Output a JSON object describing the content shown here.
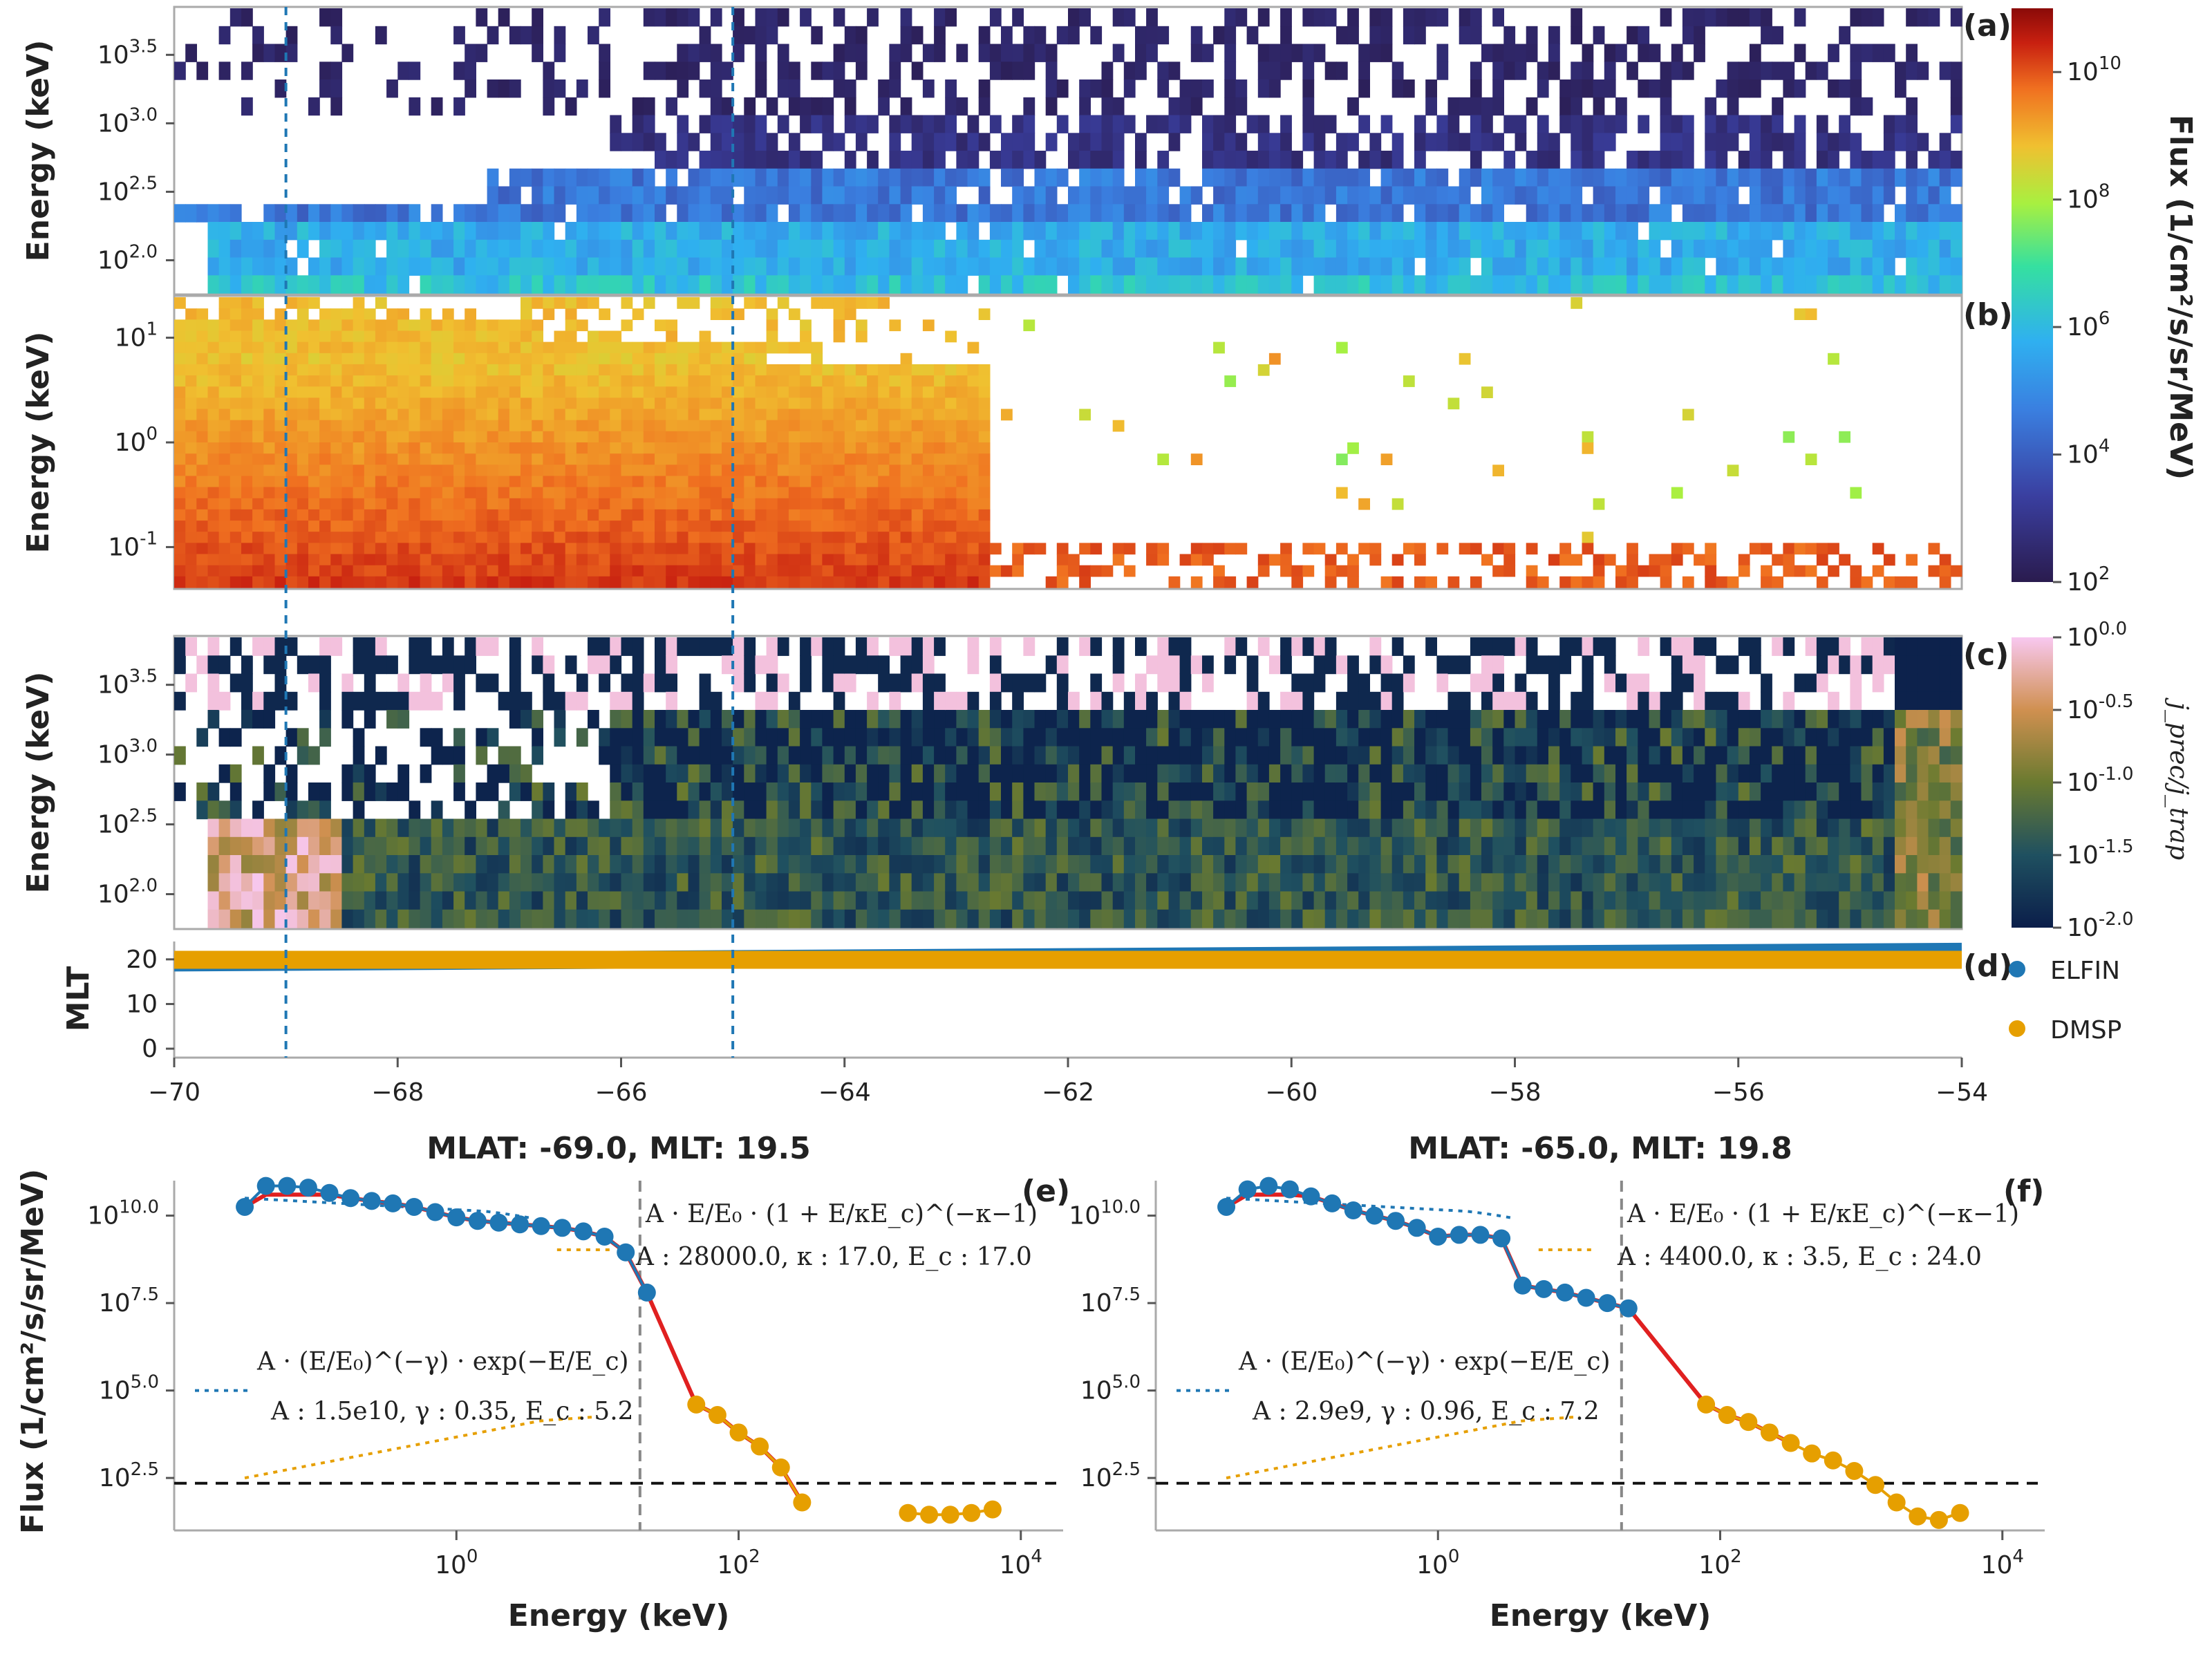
{
  "spectrograms": {
    "energy_ylabel": "Energy (keV)",
    "x_range": [
      -70,
      -54
    ],
    "x_ticks": [
      "-70",
      "-68",
      "-66",
      "-64",
      "-62",
      "-60",
      "-58",
      "-56",
      "-54"
    ],
    "dashed_mlat_lines": [
      -69.0,
      -65.0
    ],
    "panel_a": {
      "label": "(a)",
      "yticks": [
        "10^3.5",
        "10^3.0",
        "10^2.5",
        "10^2.0"
      ]
    },
    "panel_b": {
      "label": "(b)",
      "yticks": [
        "10^1",
        "10^0",
        "10^-1"
      ]
    },
    "panel_c": {
      "label": "(c)",
      "yticks": [
        "10^3.5",
        "10^3.0",
        "10^2.5",
        "10^2.0"
      ]
    },
    "panel_d": {
      "label": "(d)",
      "ylabel": "MLT",
      "yticks": [
        "20",
        "10",
        "0"
      ],
      "legend": [
        {
          "name": "ELFIN",
          "color": "#1f77b4"
        },
        {
          "name": "DMSP",
          "color": "#e69f00"
        }
      ]
    },
    "flux_colorbar": {
      "label": "Flux (1/cm²/s/sr/MeV)",
      "ticks": [
        "10^10",
        "10^8",
        "10^6",
        "10^4",
        "10^2"
      ]
    },
    "ratio_colorbar": {
      "label": "j_prec/j_trap",
      "ticks": [
        "10^0.0",
        "10^-0.5",
        "10^-1.0",
        "10^-1.5",
        "10^-2.0"
      ]
    }
  },
  "spectra": {
    "ylabel": "Flux (1/cm²/s/sr/MeV)",
    "xlabel": "Energy (keV)",
    "yticks": [
      "10^10.0",
      "10^7.5",
      "10^5.0",
      "10^2.5"
    ],
    "xticks": [
      "10^0",
      "10^2",
      "10^4"
    ],
    "panel_e": {
      "title": "MLAT: -69.0, MLT: 19.5",
      "label": "(e)",
      "kappa_formula": "A · E/E₀ · (1 + E/κE_c)^(−κ−1)",
      "kappa_params": "A : 28000.0, κ : 17.0, E_c : 17.0",
      "exp_formula": "A · (E/E₀)^(−γ) · exp(−E/E_c)",
      "exp_params": "A : 1.5e10, γ : 0.35, E_c : 5.2"
    },
    "panel_f": {
      "title": "MLAT: -65.0, MLT: 19.8",
      "label": "(f)",
      "kappa_formula": "A · E/E₀ · (1 + E/κE_c)^(−κ−1)",
      "kappa_params": "A : 4400.0, κ : 3.5, E_c : 24.0",
      "exp_formula": "A · (E/E₀)^(−γ) · exp(−E/E_c)",
      "exp_params": "A : 2.9e9, γ : 0.96, E_c : 7.2"
    }
  },
  "chart_data": [
    {
      "type": "heatmap",
      "panel": "a",
      "ylabel": "Energy (keV)",
      "x_range": [
        -70,
        -54
      ],
      "ylim_log10": [
        1.75,
        3.85
      ],
      "colorbar": "Flux (1/cm²/s/sr/MeV)",
      "clim_log10": [
        2,
        11
      ]
    },
    {
      "type": "heatmap",
      "panel": "b",
      "ylabel": "Energy (keV)",
      "x_range": [
        -70,
        -54
      ],
      "ylim_log10": [
        -1.4,
        1.4
      ],
      "colorbar": "Flux (1/cm²/s/sr/MeV)",
      "clim_log10": [
        2,
        11
      ]
    },
    {
      "type": "heatmap",
      "panel": "c",
      "ylabel": "Energy (keV)",
      "x_range": [
        -70,
        -54
      ],
      "ylim_log10": [
        1.75,
        3.85
      ],
      "colorbar": "j_prec/j_trap",
      "clim_log10": [
        -2,
        0
      ]
    },
    {
      "type": "line",
      "panel": "d",
      "ylabel": "MLT",
      "x_range": [
        -70,
        -54
      ],
      "ylim": [
        -2,
        24
      ],
      "series": [
        {
          "name": "ELFIN",
          "x": [
            -70,
            -54
          ],
          "y": [
            19.3,
            21.7
          ]
        },
        {
          "name": "DMSP",
          "x": [
            -70,
            -54
          ],
          "y": [
            19.9,
            19.9
          ]
        }
      ]
    },
    {
      "type": "scatter",
      "panel": "e",
      "title": "MLAT: -69.0, MLT: 19.5",
      "xlabel": "Energy (keV)",
      "ylabel": "Flux (1/cm²/s/sr/MeV)",
      "x_log": true,
      "y_log": true,
      "xlim_log10": [
        -2.0,
        4.3
      ],
      "ylim_log10": [
        1.0,
        11.0
      ],
      "vline_keV": 20,
      "hline_log10": 2.35,
      "series": [
        {
          "name": "ELFIN",
          "x_log10": [
            -1.5,
            -1.35,
            -1.2,
            -1.05,
            -0.9,
            -0.75,
            -0.6,
            -0.45,
            -0.3,
            -0.15,
            0.0,
            0.15,
            0.3,
            0.45,
            0.6,
            0.75,
            0.9,
            1.05,
            1.2,
            1.35
          ],
          "y_log10": [
            10.25,
            10.85,
            10.85,
            10.8,
            10.65,
            10.5,
            10.42,
            10.35,
            10.25,
            10.1,
            9.95,
            9.85,
            9.8,
            9.75,
            9.7,
            9.65,
            9.55,
            9.4,
            8.95,
            7.8
          ]
        },
        {
          "name": "DMSP",
          "x_log10": [
            1.7,
            1.85,
            2.0,
            2.15,
            2.3,
            2.45,
            3.2,
            3.35,
            3.5,
            3.65,
            3.8
          ],
          "y_log10": [
            4.6,
            4.3,
            3.8,
            3.4,
            2.8,
            1.8,
            1.5,
            1.45,
            1.45,
            1.5,
            1.6
          ]
        }
      ]
    },
    {
      "type": "scatter",
      "panel": "f",
      "title": "MLAT: -65.0, MLT: 19.8",
      "xlabel": "Energy (keV)",
      "ylabel": "Flux (1/cm²/s/sr/MeV)",
      "x_log": true,
      "y_log": true,
      "xlim_log10": [
        -2.0,
        4.3
      ],
      "ylim_log10": [
        1.0,
        11.0
      ],
      "vline_keV": 20,
      "hline_log10": 2.35,
      "series": [
        {
          "name": "ELFIN",
          "x_log10": [
            -1.5,
            -1.35,
            -1.2,
            -1.05,
            -0.9,
            -0.75,
            -0.6,
            -0.45,
            -0.3,
            -0.15,
            0.0,
            0.15,
            0.3,
            0.45,
            0.6,
            0.75,
            0.9,
            1.05,
            1.2,
            1.35
          ],
          "y_log10": [
            10.25,
            10.75,
            10.85,
            10.75,
            10.55,
            10.35,
            10.15,
            10.0,
            9.85,
            9.65,
            9.4,
            9.45,
            9.45,
            9.35,
            8.0,
            7.9,
            7.8,
            7.65,
            7.5,
            7.35
          ]
        },
        {
          "name": "DMSP",
          "x_log10": [
            1.9,
            2.05,
            2.2,
            2.35,
            2.5,
            2.65,
            2.8,
            2.95,
            3.1,
            3.25,
            3.4,
            3.55,
            3.7
          ],
          "y_log10": [
            4.6,
            4.3,
            4.1,
            3.8,
            3.5,
            3.2,
            3.0,
            2.7,
            2.3,
            1.8,
            1.4,
            1.3,
            1.5
          ]
        }
      ]
    }
  ]
}
